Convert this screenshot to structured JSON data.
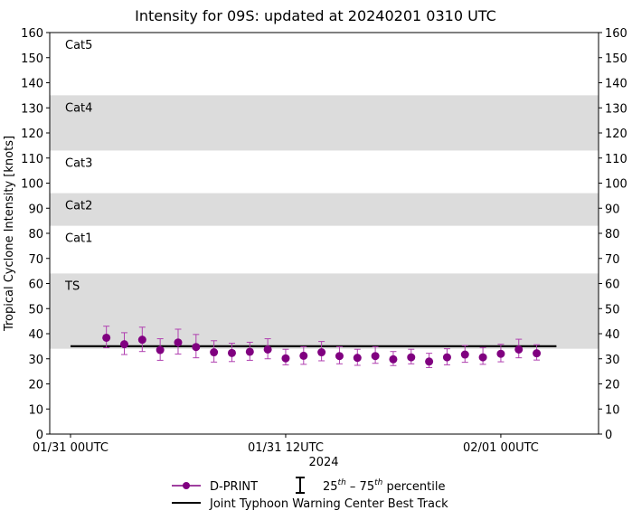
{
  "chart_data": {
    "type": "scatter",
    "title": "Intensity for 09S: updated at 20240201 0310 UTC",
    "xlabel": "2024",
    "ylabel": "Tropical Cyclone Intensity [knots]",
    "x_unit": "hours after 01/31 00UTC",
    "xlim": [
      -1.16,
      29.45
    ],
    "ylim": [
      0,
      160
    ],
    "yticks": [
      0,
      10,
      20,
      30,
      40,
      50,
      60,
      70,
      80,
      90,
      100,
      110,
      120,
      130,
      140,
      150,
      160
    ],
    "xticks": [
      {
        "x": 0,
        "label": "01/31 00UTC"
      },
      {
        "x": 12,
        "label": "01/31 12UTC"
      },
      {
        "x": 24,
        "label": "02/01 00UTC"
      }
    ],
    "categories": [
      {
        "label": "TS",
        "range": [
          34,
          64
        ],
        "shaded": true
      },
      {
        "label": "Cat1",
        "range": [
          64,
          83
        ],
        "shaded": false
      },
      {
        "label": "Cat2",
        "range": [
          83,
          96
        ],
        "shaded": true
      },
      {
        "label": "Cat3",
        "range": [
          96,
          113
        ],
        "shaded": false
      },
      {
        "label": "Cat4",
        "range": [
          113,
          135
        ],
        "shaded": true
      },
      {
        "label": "Cat5",
        "range": [
          135,
          160
        ],
        "shaded": false
      }
    ],
    "series": [
      {
        "name": "D-PRINT",
        "color": "#800080",
        "errcolor": "#b040b0",
        "x": [
          2,
          3,
          4,
          5,
          6,
          7,
          8,
          9,
          10,
          11,
          12,
          13,
          14,
          15,
          16,
          17,
          18,
          19,
          20,
          21,
          22,
          23,
          24,
          25,
          26
        ],
        "y": [
          38.4,
          35.8,
          37.6,
          33.5,
          36.5,
          34.7,
          32.6,
          32.3,
          32.8,
          33.7,
          30.2,
          31.2,
          32.6,
          31.1,
          30.4,
          31.1,
          29.8,
          30.6,
          28.9,
          30.6,
          31.7,
          30.6,
          32.0,
          33.7,
          32.2
        ],
        "p75": [
          43.0,
          40.4,
          42.6,
          38.0,
          41.8,
          39.7,
          37.2,
          36.2,
          36.6,
          38.0,
          33.8,
          34.8,
          36.9,
          34.8,
          33.8,
          34.8,
          32.9,
          33.8,
          32.2,
          34.0,
          35.3,
          34.5,
          35.8,
          37.8,
          35.6
        ],
        "p25": [
          34.4,
          31.7,
          32.9,
          29.4,
          31.9,
          30.4,
          28.7,
          28.9,
          29.4,
          30.0,
          27.6,
          27.8,
          29.2,
          28.0,
          27.4,
          28.2,
          27.3,
          28.0,
          26.5,
          27.6,
          28.6,
          27.8,
          28.8,
          30.4,
          29.5
        ]
      },
      {
        "name": "Joint Typhoon Warning Center Best Track",
        "color": "#000000",
        "x": [
          0,
          27.1
        ],
        "y": [
          35,
          35
        ]
      }
    ],
    "legend": {
      "placement": "bottom-center",
      "dprint": "D-PRINT",
      "pct_prefix": "25",
      "pct_sup1": "th",
      "pct_mid": " – 75",
      "pct_sup2": "th",
      "pct_suffix": " percentile",
      "besttrack": "Joint Typhoon Warning Center Best Track"
    },
    "band_color": "#dcdcdc",
    "grid": false
  }
}
